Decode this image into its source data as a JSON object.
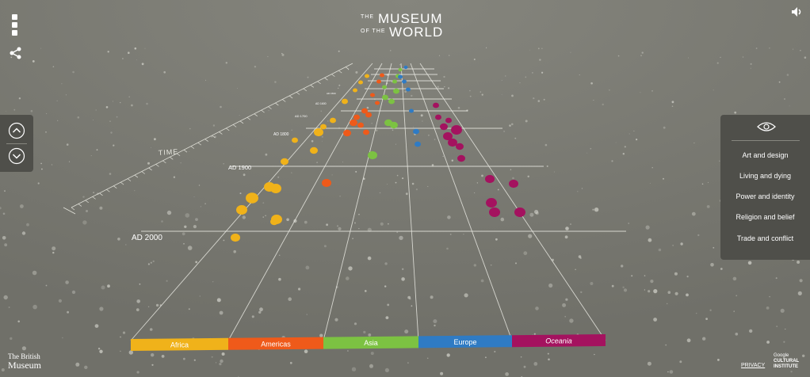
{
  "logo": {
    "the_1": "THE",
    "museum": "MUSEUM",
    "of_the": "OF THE",
    "world": "WORLD"
  },
  "timeline": {
    "axis_label": "TIME",
    "ticks": [
      {
        "label": "AD 2000",
        "year": 2000
      },
      {
        "label": "AD 1900",
        "year": 1900
      },
      {
        "label": "AD 1800",
        "year": 1800
      },
      {
        "label": "AD 1700",
        "year": 1700
      },
      {
        "label": "AD 1600",
        "year": 1600
      },
      {
        "label": "AD 1500",
        "year": 1500
      }
    ]
  },
  "continents": [
    {
      "label": "Africa",
      "color": "#f0b21a"
    },
    {
      "label": "Americas",
      "color": "#ef5a1a"
    },
    {
      "label": "Asia",
      "color": "#7cc242"
    },
    {
      "label": "Europe",
      "color": "#2f7bc4"
    },
    {
      "label": "Oceania",
      "color": "#a4125f"
    }
  ],
  "themes": {
    "icon": "eye-icon",
    "items": [
      "Art and design",
      "Living and dying",
      "Power and identity",
      "Religion and belief",
      "Trade and conflict"
    ]
  },
  "nav": {
    "up_icon": "chevron-up-icon",
    "down_icon": "chevron-down-icon",
    "menu_icon": "menu-icon",
    "share_icon": "share-icon",
    "sound_icon": "sound-icon"
  },
  "footer": {
    "bm_line1": "The British",
    "bm_line2": "Museum",
    "privacy": "PRIVACY",
    "gci_1": "Google",
    "gci_2": "CULTURAL",
    "gci_3": "INSTITUTE"
  }
}
